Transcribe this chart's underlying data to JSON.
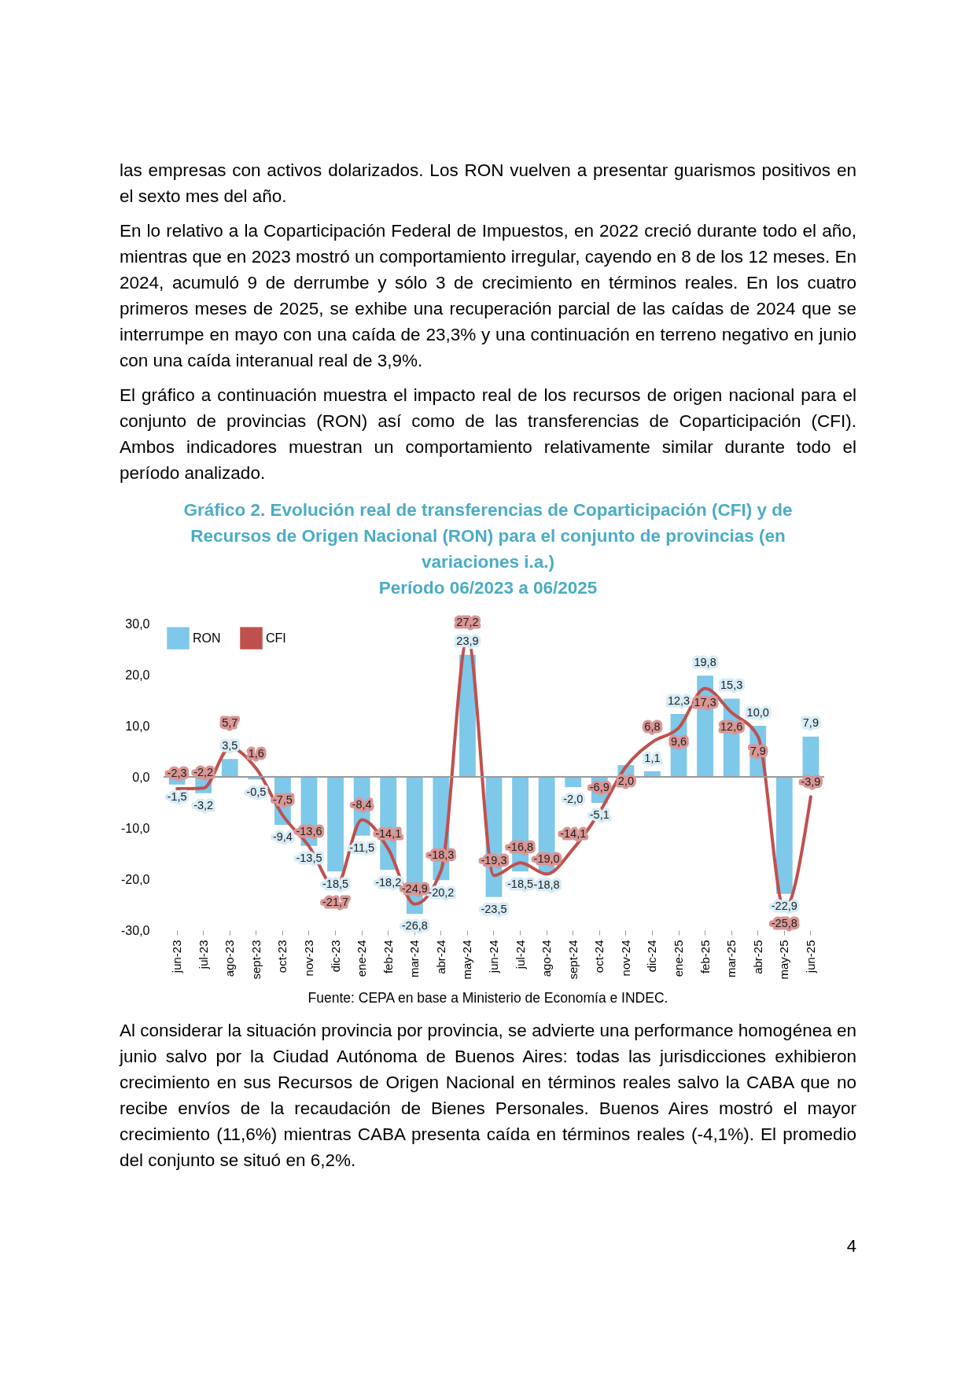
{
  "chart_data": {
    "type": "bar",
    "title": "Gráfico 2. Evolución real de transferencias de Coparticipación (CFI) y de Recursos de Origen Nacional (RON) para el conjunto de provincias (en variaciones i.a.)",
    "subtitle": "Período 06/2023 a 06/2025",
    "categories": [
      "jun-23",
      "jul-23",
      "ago-23",
      "sept-23",
      "oct-23",
      "nov-23",
      "dic-23",
      "ene-24",
      "feb-24",
      "mar-24",
      "abr-24",
      "may-24",
      "jun-24",
      "jul-24",
      "ago-24",
      "sept-24",
      "oct-24",
      "nov-24",
      "dic-24",
      "ene-25",
      "feb-25",
      "mar-25",
      "abr-25",
      "may-25",
      "jun-25"
    ],
    "series": [
      {
        "name": "RON",
        "color": "#7ec8ea",
        "values": [
          -1.5,
          -3.2,
          3.5,
          -0.5,
          -9.4,
          -13.5,
          -18.5,
          -11.5,
          -18.2,
          -26.8,
          -20.2,
          23.9,
          -23.5,
          -18.5,
          -18.8,
          -2.0,
          -5.1,
          2.3,
          1.1,
          12.3,
          19.8,
          15.3,
          10.0,
          -22.9,
          7.9
        ],
        "value_labels": [
          "-1,5",
          "-3,2",
          "3,5",
          "-0,5",
          "-9,4",
          "-13,5",
          "-18,5",
          "-11,5",
          "-18,2",
          "-26,8",
          "-20,2",
          "23,9",
          "-23,5",
          "-18,5",
          "-18,8",
          "-2,0",
          "-5,1",
          null,
          "1,1",
          "12,3",
          "19,8",
          "15,3",
          "10,0",
          "-22,9",
          "7,9"
        ]
      },
      {
        "name": "CFI",
        "type": "line",
        "color": "#c0504d",
        "values": [
          -2.3,
          -2.2,
          5.7,
          1.6,
          -7.5,
          -13.6,
          -21.7,
          -8.4,
          -14.1,
          -24.9,
          -18.3,
          27.2,
          -19.3,
          -16.8,
          -19.0,
          -14.1,
          -6.9,
          2.0,
          6.8,
          9.6,
          17.3,
          12.6,
          7.9,
          -25.8,
          -3.9
        ],
        "value_labels": [
          "-2,3",
          "-2,2",
          "5,7",
          "1,6",
          "-7,5",
          "-13,6",
          "-21,7",
          "-8,4",
          "-14,1",
          "-24,9",
          "-18,3",
          "27,2",
          "-19,3",
          "-16,8",
          "-19,0",
          "-14,1",
          "-6,9",
          "2,0",
          "6,8",
          "9,6",
          "17,3",
          "12,6",
          "7,9",
          "-25,8",
          "-3,9"
        ]
      }
    ],
    "ylim": [
      -30,
      30
    ],
    "yticks": [
      {
        "value": -30,
        "label": "-30,0"
      },
      {
        "value": -20,
        "label": "-20,0"
      },
      {
        "value": -10,
        "label": "-10,0"
      },
      {
        "value": 0,
        "label": "0,0"
      },
      {
        "value": 10,
        "label": "10,0"
      },
      {
        "value": 20,
        "label": "20,0"
      },
      {
        "value": 30,
        "label": "30,0"
      }
    ],
    "ref_lines": [
      {
        "axis": "y",
        "value": 0,
        "color": "#9a9a9a"
      }
    ],
    "grid": false,
    "legend": "top left",
    "annotations": [
      "las empresas con activos dolarizados. Los RON vuelven a presentar guarismos positivos en el sexto mes del año.",
      "En lo relativo a la Coparticipación Federal de Impuestos, en 2022 creció durante todo el año, mientras que en 2023 mostró un comportamiento irregular, cayendo en 8 de los 12 meses. En 2024, acumuló 9 de derrumbe y sólo 3 de crecimiento en términos reales. En los cuatro primeros meses de 2025, se exhibe una recuperación parcial de las caídas de 2024 que se interrumpe en mayo con una caída de 23,3% y una continuación en terreno negativo en junio con una caída interanual real de 3,9%.",
      "El gráfico a continuación muestra el impacto real de los recursos de origen nacional para el conjunto de provincias (RON) así como de las transferencias de Coparticipación (CFI). Ambos indicadores muestran un comportamiento relativamente similar durante todo el período analizado.",
      "Fuente: CEPA en base a Ministerio de Economía e INDEC.",
      "Al considerar la situación provincia por provincia, se advierte una performance homogénea en junio salvo por la Ciudad Autónoma de Buenos Aires: todas las jurisdicciones exhibieron crecimiento en sus Recursos de Origen Nacional en términos reales salvo la CABA que no recibe envíos de la recaudación de Bienes Personales. Buenos Aires mostró el mayor crecimiento (11,6%) mientras CABA presenta caída en términos reales (-4,1%). El promedio del conjunto se situó en 6,2%.",
      "4"
    ]
  }
}
